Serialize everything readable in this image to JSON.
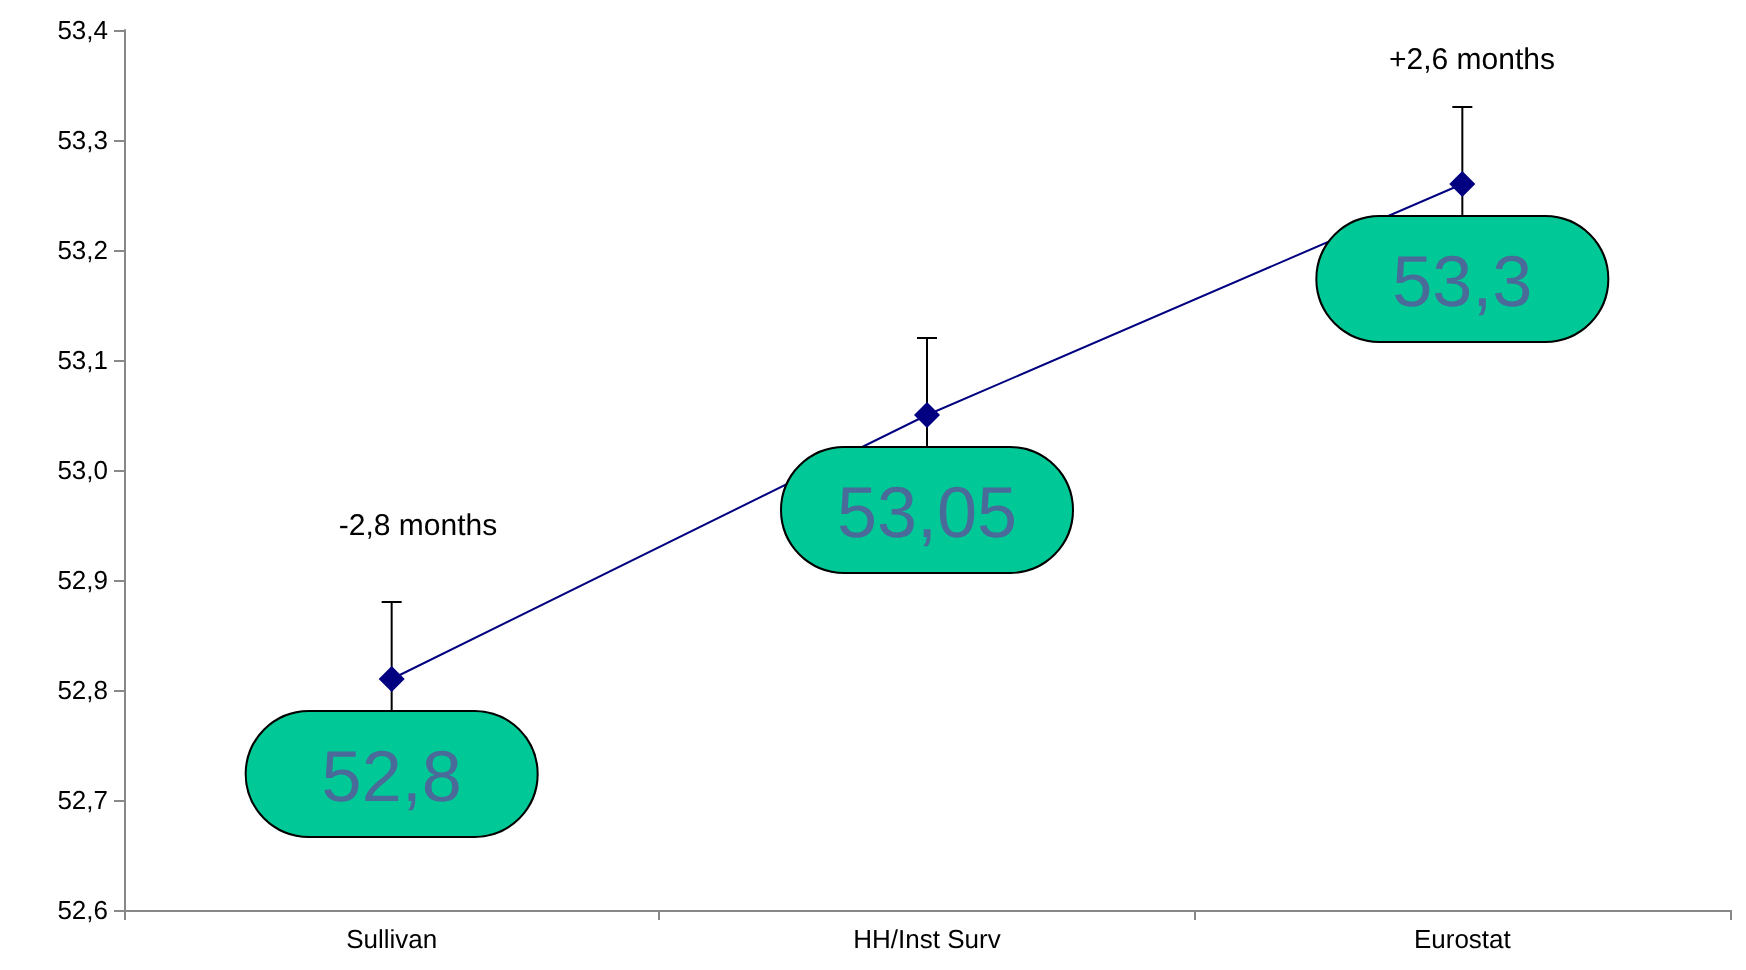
{
  "chart_data": {
    "type": "line",
    "categories": [
      "Sullivan",
      "HH/Inst Surv",
      "Eurostat"
    ],
    "series": [
      {
        "color": "#000080",
        "values": [
          52.81,
          53.05,
          53.26
        ],
        "errors": [
          0.07,
          0.07,
          0.07
        ],
        "value_labels": [
          "52,8",
          "53,05",
          "53,3"
        ]
      }
    ],
    "ylim": [
      52.6,
      53.4
    ],
    "yticks": [
      {
        "value": 52.6,
        "label": "52,6"
      },
      {
        "value": 52.7,
        "label": "52,7"
      },
      {
        "value": 52.8,
        "label": "52,8"
      },
      {
        "value": 52.9,
        "label": "52,9"
      },
      {
        "value": 53.0,
        "label": "53,0"
      },
      {
        "value": 53.1,
        "label": "53,1"
      },
      {
        "value": 53.2,
        "label": "53,2"
      },
      {
        "value": 53.3,
        "label": "53,3"
      },
      {
        "value": 53.4,
        "label": "53,4"
      }
    ],
    "annotations": [
      "-2,8 months",
      "+2,6 months"
    ],
    "marker": "diamond",
    "line_style": "solid"
  }
}
